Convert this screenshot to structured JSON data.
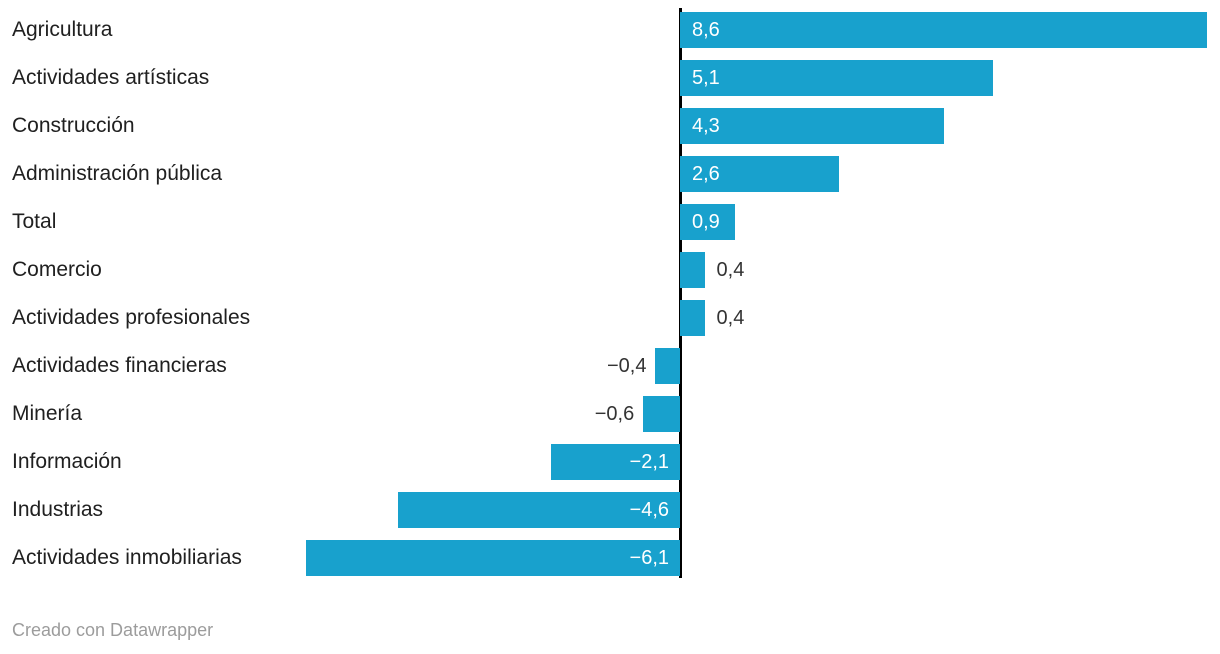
{
  "chart_data": {
    "type": "bar",
    "orientation": "horizontal",
    "categories": [
      "Agricultura",
      "Actividades artísticas",
      "Construcción",
      "Administración pública",
      "Total",
      "Comercio",
      "Actividades profesionales",
      "Actividades financieras",
      "Minería",
      "Información",
      "Industrias",
      "Actividades inmobiliarias"
    ],
    "values": [
      8.6,
      5.1,
      4.3,
      2.6,
      0.9,
      0.4,
      0.4,
      -0.4,
      -0.6,
      -2.1,
      -4.6,
      -6.1
    ],
    "value_labels": [
      "8,6",
      "5,1",
      "4,3",
      "2,6",
      "0,9",
      "0,4",
      "0,4",
      "−0,4",
      "−0,6",
      "−2,1",
      "−4,6",
      "−6,1"
    ],
    "xlim": [
      -6.1,
      8.6
    ],
    "grid": false,
    "legend": false,
    "colors": {
      "bar": "#18a1cd",
      "axis": "#000000",
      "category_label": "#202020",
      "value_inside": "#ffffff",
      "value_outside": "#333333"
    }
  },
  "footer": {
    "credit": "Creado con Datawrapper",
    "color": "#9c9c9c"
  }
}
